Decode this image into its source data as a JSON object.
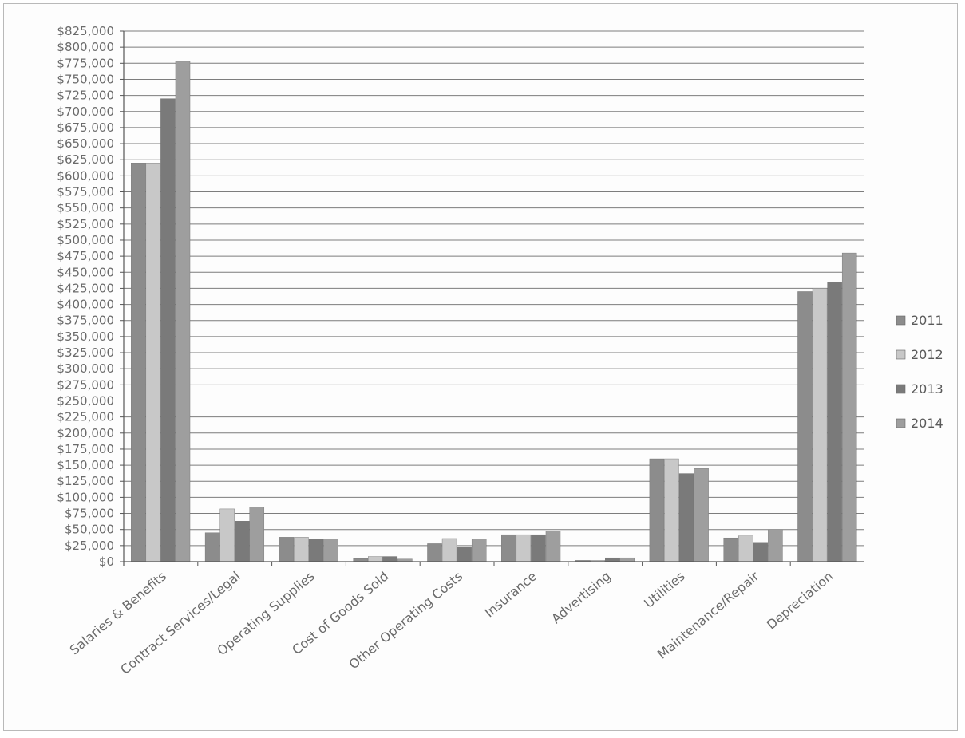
{
  "chart_data": {
    "type": "bar",
    "title": "",
    "xlabel": "",
    "ylabel": "",
    "ylim": [
      0,
      825000
    ],
    "y_tick_step": 25000,
    "y_tick_format": "currency",
    "grid": true,
    "legend_position": "right",
    "categories": [
      "Salaries & Benefits",
      "Contract Services/Legal",
      "Operating Supplies",
      "Cost of Goods Sold",
      "Other Operating Costs",
      "Insurance",
      "Advertising",
      "Utilities",
      "Maintenance/Repair",
      "Depreciation"
    ],
    "series": [
      {
        "name": "2011",
        "color": "#8c8c8c",
        "values": [
          620000,
          45000,
          38000,
          5000,
          28000,
          42000,
          2000,
          160000,
          37000,
          420000
        ]
      },
      {
        "name": "2012",
        "color": "#c8c8c8",
        "values": [
          620000,
          82000,
          38000,
          8000,
          36000,
          42000,
          2000,
          160000,
          40000,
          425000
        ]
      },
      {
        "name": "2013",
        "color": "#7a7a7a",
        "values": [
          720000,
          63000,
          35000,
          8000,
          23000,
          42000,
          6000,
          137000,
          30000,
          435000
        ]
      },
      {
        "name": "2014",
        "color": "#9e9e9e",
        "values": [
          778000,
          85000,
          35000,
          4000,
          35000,
          48000,
          6000,
          145000,
          50000,
          480000
        ]
      }
    ]
  }
}
